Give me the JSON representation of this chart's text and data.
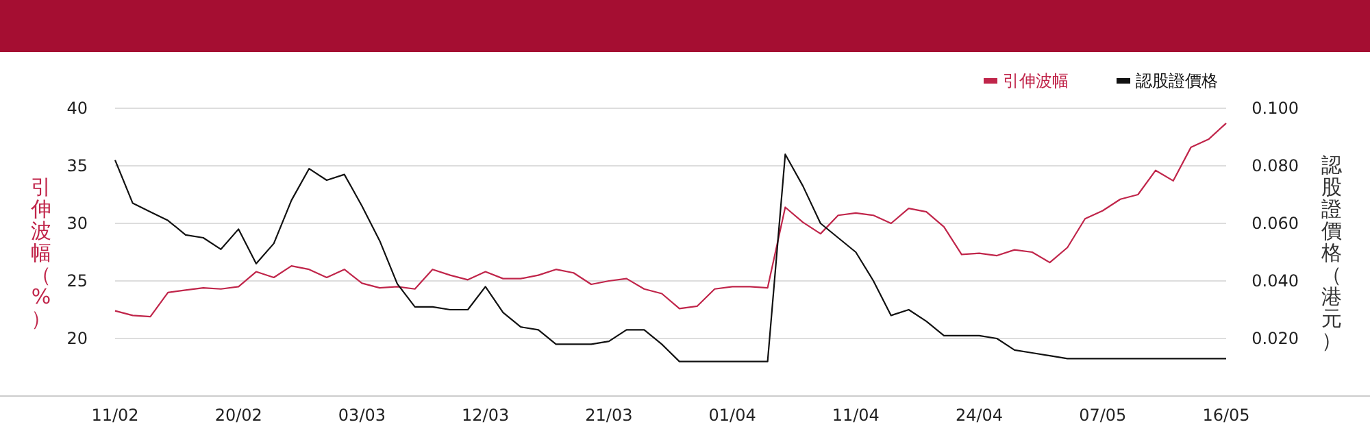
{
  "chart_data": {
    "type": "line",
    "categories": [
      "11/02",
      null,
      null,
      null,
      null,
      null,
      null,
      "20/02",
      null,
      null,
      null,
      null,
      null,
      null,
      "03/03",
      null,
      null,
      null,
      null,
      null,
      null,
      "12/03",
      null,
      null,
      null,
      null,
      null,
      null,
      "21/03",
      null,
      null,
      null,
      null,
      null,
      null,
      "01/04",
      null,
      null,
      null,
      null,
      null,
      null,
      "11/04",
      null,
      null,
      null,
      null,
      null,
      null,
      "24/04",
      null,
      null,
      null,
      null,
      null,
      null,
      "07/05",
      null,
      null,
      null,
      null,
      null,
      null,
      "16/05"
    ],
    "series": [
      {
        "name": "引伸波幅",
        "color": "#c0254a",
        "values": [
          22.4,
          22.0,
          21.9,
          24.0,
          24.2,
          24.4,
          24.3,
          24.5,
          25.8,
          25.3,
          26.3,
          26.0,
          25.3,
          26.0,
          24.8,
          24.4,
          24.5,
          24.3,
          26.0,
          25.5,
          25.1,
          25.8,
          25.2,
          25.2,
          25.5,
          26.0,
          25.7,
          24.7,
          25.0,
          25.2,
          24.3,
          23.9,
          22.6,
          22.8,
          24.3,
          24.5,
          24.5,
          24.4,
          31.4,
          30.1,
          29.1,
          30.7,
          30.9,
          30.7,
          30.0,
          31.3,
          31.0,
          29.7,
          27.3,
          27.4,
          27.2,
          27.7,
          27.5,
          26.6,
          27.9,
          30.4,
          31.1,
          32.1,
          32.5,
          34.6,
          33.7,
          36.6,
          37.3,
          38.7
        ]
      },
      {
        "name": "認股證價格",
        "color": "#111111",
        "axis": "y2",
        "values": [
          0.082,
          0.067,
          0.064,
          0.061,
          0.056,
          0.055,
          0.051,
          0.058,
          0.046,
          0.053,
          0.068,
          0.079,
          0.075,
          0.077,
          0.066,
          0.054,
          0.039,
          0.031,
          0.031,
          0.03,
          0.03,
          0.038,
          0.029,
          0.024,
          0.023,
          0.018,
          0.018,
          0.018,
          0.019,
          0.023,
          0.023,
          0.018,
          0.012,
          0.012,
          0.012,
          0.012,
          0.012,
          0.012,
          0.084,
          0.073,
          0.06,
          0.055,
          0.05,
          0.04,
          0.028,
          0.03,
          0.026,
          0.021,
          0.021,
          0.021,
          0.02,
          0.016,
          0.015,
          0.014,
          0.013,
          0.013,
          0.013,
          0.013,
          0.013,
          0.013,
          0.013,
          0.013,
          0.013,
          0.013
        ]
      }
    ],
    "ylabel": "引伸波幅（%）",
    "y2label": "認股證價格（港元）",
    "ylim": [
      15,
      40
    ],
    "yticks": [
      20,
      25,
      30,
      35,
      40
    ],
    "y2lim": [
      0,
      0.1
    ],
    "y2ticks": [
      {
        "value": 0.02,
        "label": "0.020"
      },
      {
        "value": 0.04,
        "label": "0.040"
      },
      {
        "value": 0.06,
        "label": "0.060"
      },
      {
        "value": 0.08,
        "label": "0.080"
      },
      {
        "value": 0.1,
        "label": "0.100"
      }
    ],
    "grid": "y",
    "legend": "top right"
  }
}
